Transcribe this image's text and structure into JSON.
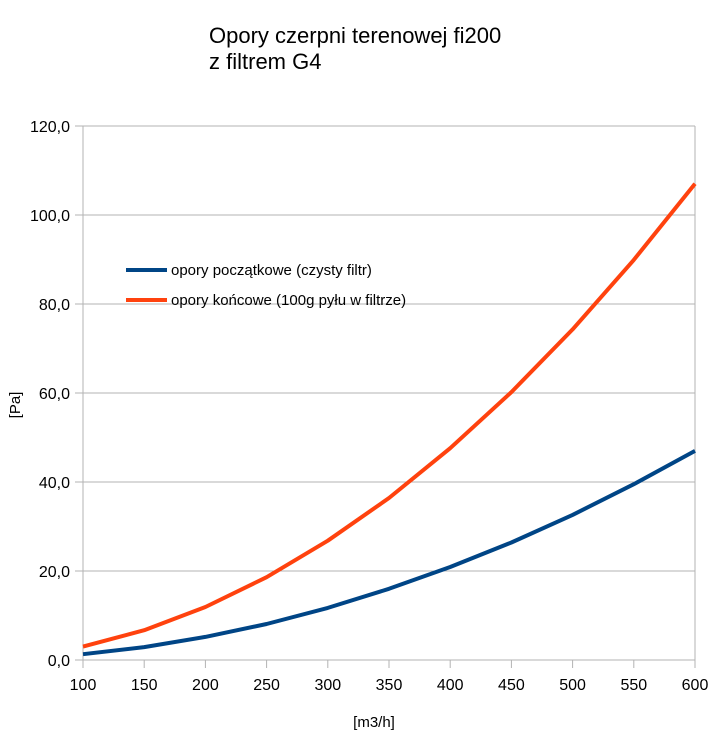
{
  "chart_data": {
    "type": "line",
    "title": [
      "Opory czerpni terenowej fi200",
      "z filtrem G4"
    ],
    "xlabel": "[m3/h]",
    "ylabel": "[Pa]",
    "x": [
      100,
      150,
      200,
      250,
      300,
      350,
      400,
      450,
      500,
      550,
      600
    ],
    "x_tick_labels": [
      "100",
      "150",
      "200",
      "250",
      "300",
      "350",
      "400",
      "450",
      "500",
      "550",
      "600"
    ],
    "ylim": [
      0,
      120
    ],
    "y_ticks": [
      0,
      20,
      40,
      60,
      80,
      100,
      120
    ],
    "y_tick_labels": [
      "0,0",
      "20,0",
      "40,0",
      "60,0",
      "80,0",
      "100,0",
      "120,0"
    ],
    "grid": "horizontal",
    "legend_position": "upper-left inside plot",
    "series": [
      {
        "name": "opory początkowe (czysty filtr)",
        "color": "#004586",
        "values": [
          1.3,
          2.9,
          5.2,
          8.1,
          11.7,
          16.0,
          20.9,
          26.4,
          32.6,
          39.5,
          47.0
        ]
      },
      {
        "name": "opory końcowe (100g pyłu w filtrze)",
        "color": "#ff420e",
        "values": [
          3.0,
          6.7,
          11.9,
          18.6,
          26.8,
          36.4,
          47.6,
          60.2,
          74.3,
          89.9,
          107.0
        ]
      }
    ]
  }
}
